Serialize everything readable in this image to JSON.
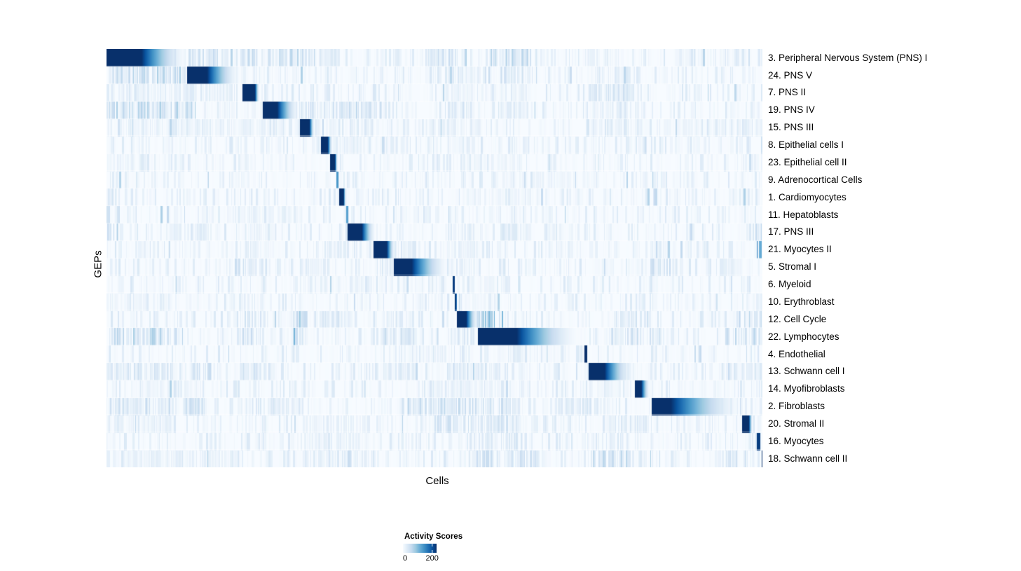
{
  "chart_data": {
    "type": "heatmap",
    "title": "",
    "xlabel": "Cells",
    "ylabel": "GEPs",
    "legend_position": "bottom",
    "colorbar": {
      "title": "Activity Scores",
      "tick_labels": [
        "0",
        "200"
      ],
      "tick_values": [
        0,
        200
      ],
      "vmin": 0,
      "vmax": 230,
      "colormap": "Blues",
      "colormap_stops": [
        "#f7fbff",
        "#deebf7",
        "#c6dbef",
        "#9ecae1",
        "#6baed6",
        "#4292c6",
        "#2171b5",
        "#08519c",
        "#08306b"
      ]
    },
    "background_color": "#f7fbff",
    "max_color": "#08306b",
    "n_rows": 24,
    "n_cols": 936,
    "noise_seed": 7,
    "rows": [
      {
        "label": "3. Peripheral Nervous System (PNS) I",
        "block": [
          0.0,
          0.053,
          0.123,
          1.0
        ],
        "clusters": [
          [
            0.125,
            0.175,
            0.3
          ],
          [
            0.205,
            0.3,
            0.3
          ],
          [
            0.3,
            0.345,
            0.16
          ],
          [
            0.5,
            0.535,
            0.25
          ],
          [
            0.585,
            0.655,
            0.33
          ],
          [
            0.73,
            0.78,
            0.12
          ],
          [
            0.86,
            0.96,
            0.1
          ]
        ]
      },
      {
        "label": "24. PNS V",
        "block": [
          0.122,
          0.153,
          0.203,
          1.0
        ],
        "clusters": [
          [
            0.0,
            0.12,
            0.35
          ],
          [
            0.5,
            0.56,
            0.15
          ],
          [
            0.6,
            0.655,
            0.25
          ],
          [
            0.74,
            0.8,
            0.12
          ]
        ]
      },
      {
        "label": "7. PNS II",
        "block": [
          0.207,
          0.226,
          0.233,
          1.0
        ],
        "clusters": [
          [
            0.0,
            0.2,
            0.12
          ],
          [
            0.52,
            0.56,
            0.1
          ],
          [
            0.6,
            0.64,
            0.1
          ],
          [
            0.735,
            0.81,
            0.22
          ]
        ]
      },
      {
        "label": "19. PNS IV",
        "block": [
          0.238,
          0.26,
          0.294,
          1.0
        ],
        "clusters": [
          [
            0.0,
            0.135,
            0.35
          ],
          [
            0.24,
            0.3,
            0.22
          ],
          [
            0.3,
            0.42,
            0.25
          ],
          [
            0.52,
            0.56,
            0.2
          ],
          [
            0.6,
            0.65,
            0.15
          ],
          [
            0.74,
            0.8,
            0.1
          ]
        ]
      },
      {
        "label": "15. PNS III",
        "block": [
          0.294,
          0.309,
          0.317,
          1.0
        ],
        "clusters": [
          [
            0.0,
            0.33,
            0.12
          ],
          [
            0.48,
            0.57,
            0.12
          ],
          [
            0.73,
            0.8,
            0.18
          ],
          [
            0.85,
            1.0,
            0.1
          ]
        ]
      },
      {
        "label": "8. Epithelial cells I",
        "block": [
          0.326,
          0.337,
          0.344,
          1.0
        ],
        "clusters": [
          [
            0.3,
            0.46,
            0.1
          ],
          [
            0.52,
            0.56,
            0.08
          ]
        ]
      },
      {
        "label": "23. Epithelial cell II",
        "block": [
          0.34,
          0.348,
          0.352,
          1.0
        ],
        "clusters": [
          [
            0.0,
            0.06,
            0.1
          ],
          [
            0.55,
            0.62,
            0.08
          ]
        ]
      },
      {
        "label": "9. Adrenocortical Cells",
        "block": [
          0.35,
          0.353,
          0.354,
          0.6
        ],
        "clusters": [
          [
            0.6,
            0.75,
            0.06
          ]
        ]
      },
      {
        "label": "1. Cardiomyocytes",
        "block": [
          0.354,
          0.361,
          0.365,
          1.0
        ],
        "clusters": [
          [
            0.0,
            0.02,
            0.25
          ],
          [
            0.55,
            0.65,
            0.08
          ],
          [
            0.97,
            1.0,
            0.12
          ]
        ]
      },
      {
        "label": "11. Hepatoblasts",
        "block": [
          0.365,
          0.368,
          0.369,
          0.55
        ],
        "clusters": [
          [
            0.0,
            0.02,
            0.3
          ],
          [
            0.2,
            0.3,
            0.06
          ]
        ]
      },
      {
        "label": "17. PNS III",
        "block": [
          0.367,
          0.389,
          0.41,
          1.0
        ],
        "clusters": [
          [
            0.0,
            0.02,
            0.45
          ],
          [
            0.1,
            0.16,
            0.15
          ],
          [
            0.21,
            0.25,
            0.12
          ],
          [
            0.52,
            0.56,
            0.12
          ],
          [
            0.6,
            0.65,
            0.12
          ],
          [
            0.99,
            1.0,
            0.3
          ]
        ]
      },
      {
        "label": "21. Myocytes II",
        "block": [
          0.407,
          0.427,
          0.44,
          1.0
        ],
        "clusters": [
          [
            0.21,
            0.25,
            0.12
          ],
          [
            0.33,
            0.37,
            0.12
          ],
          [
            0.42,
            0.47,
            0.18
          ],
          [
            0.52,
            0.56,
            0.12
          ],
          [
            0.83,
            0.87,
            0.12
          ],
          [
            0.992,
            1.0,
            0.8
          ]
        ]
      },
      {
        "label": "5. Stromal I",
        "block": [
          0.438,
          0.465,
          0.521,
          1.0
        ],
        "clusters": [
          [
            0.2,
            0.25,
            0.22
          ],
          [
            0.3,
            0.34,
            0.15
          ],
          [
            0.42,
            0.47,
            0.18
          ],
          [
            0.52,
            0.56,
            0.15
          ],
          [
            0.83,
            0.87,
            0.25
          ],
          [
            0.93,
            0.96,
            0.12
          ]
        ]
      },
      {
        "label": "6. Myeloid",
        "block": [
          0.527,
          0.53,
          0.531,
          0.95
        ],
        "clusters": [
          [
            0.3,
            0.5,
            0.05
          ],
          [
            0.55,
            0.6,
            0.06
          ]
        ]
      },
      {
        "label": "10. Erythroblast",
        "block": [
          0.53,
          0.533,
          0.534,
          0.95
        ],
        "clusters": [
          [
            0.0,
            0.1,
            0.06
          ],
          [
            0.5,
            0.6,
            0.05
          ]
        ]
      },
      {
        "label": "12. Cell Cycle",
        "block": [
          0.534,
          0.548,
          0.566,
          1.0
        ],
        "clusters": [
          [
            0.205,
            0.24,
            0.2
          ],
          [
            0.285,
            0.31,
            0.45
          ],
          [
            0.32,
            0.37,
            0.18
          ],
          [
            0.42,
            0.47,
            0.15
          ],
          [
            0.566,
            0.604,
            0.5
          ],
          [
            0.77,
            0.83,
            0.2
          ],
          [
            0.96,
            1.0,
            0.3
          ]
        ]
      },
      {
        "label": "22. Lymphocytes",
        "block": [
          0.566,
          0.625,
          0.721,
          1.0
        ],
        "clusters": [
          [
            0.0,
            0.11,
            0.35
          ],
          [
            0.205,
            0.24,
            0.25
          ],
          [
            0.285,
            0.31,
            0.55
          ],
          [
            0.42,
            0.47,
            0.25
          ],
          [
            0.52,
            0.56,
            0.2
          ],
          [
            0.77,
            0.85,
            0.25
          ],
          [
            0.93,
            1.0,
            0.3
          ]
        ]
      },
      {
        "label": "4. Endothelial",
        "block": [
          0.728,
          0.732,
          0.733,
          1.0
        ],
        "clusters": [
          [
            0.45,
            0.52,
            0.08
          ],
          [
            0.6,
            0.7,
            0.06
          ]
        ]
      },
      {
        "label": "13. Schwann cell I",
        "block": [
          0.735,
          0.759,
          0.802,
          1.0
        ],
        "clusters": [
          [
            0.0,
            0.1,
            0.22
          ],
          [
            0.12,
            0.16,
            0.25
          ],
          [
            0.205,
            0.25,
            0.2
          ],
          [
            0.42,
            0.47,
            0.15
          ],
          [
            0.52,
            0.6,
            0.22
          ],
          [
            0.93,
            1.0,
            0.15
          ]
        ]
      },
      {
        "label": "14. Myofibroblasts",
        "block": [
          0.805,
          0.815,
          0.828,
          1.0
        ],
        "clusters": [
          [
            0.05,
            0.15,
            0.08
          ],
          [
            0.5,
            0.6,
            0.1
          ],
          [
            0.75,
            0.8,
            0.08
          ]
        ]
      },
      {
        "label": "2. Fibroblasts",
        "block": [
          0.831,
          0.86,
          0.97,
          1.0
        ],
        "clusters": [
          [
            0.0,
            0.15,
            0.25
          ],
          [
            0.205,
            0.3,
            0.18
          ],
          [
            0.45,
            0.62,
            0.3
          ],
          [
            0.7,
            0.76,
            0.18
          ]
        ]
      },
      {
        "label": "20. Stromal II",
        "block": [
          0.968,
          0.979,
          0.985,
          1.0
        ],
        "clusters": [
          [
            0.0,
            0.1,
            0.12
          ],
          [
            0.3,
            0.4,
            0.1
          ],
          [
            0.5,
            0.62,
            0.22
          ],
          [
            0.77,
            0.83,
            0.18
          ]
        ]
      },
      {
        "label": "16. Myocytes",
        "block": [
          0.991,
          0.996,
          0.997,
          0.95
        ],
        "clusters": [
          [
            0.3,
            0.4,
            0.1
          ],
          [
            0.55,
            0.65,
            0.2
          ],
          [
            0.74,
            0.8,
            0.2
          ]
        ]
      },
      {
        "label": "18. Schwann cell II",
        "block": [
          0.998,
          1.0,
          1.0,
          1.0
        ],
        "clusters": [
          [
            0.0,
            0.2,
            0.12
          ],
          [
            0.3,
            0.4,
            0.12
          ],
          [
            0.55,
            0.66,
            0.25
          ],
          [
            0.74,
            0.8,
            0.35
          ],
          [
            0.93,
            0.99,
            0.2
          ]
        ]
      }
    ]
  }
}
